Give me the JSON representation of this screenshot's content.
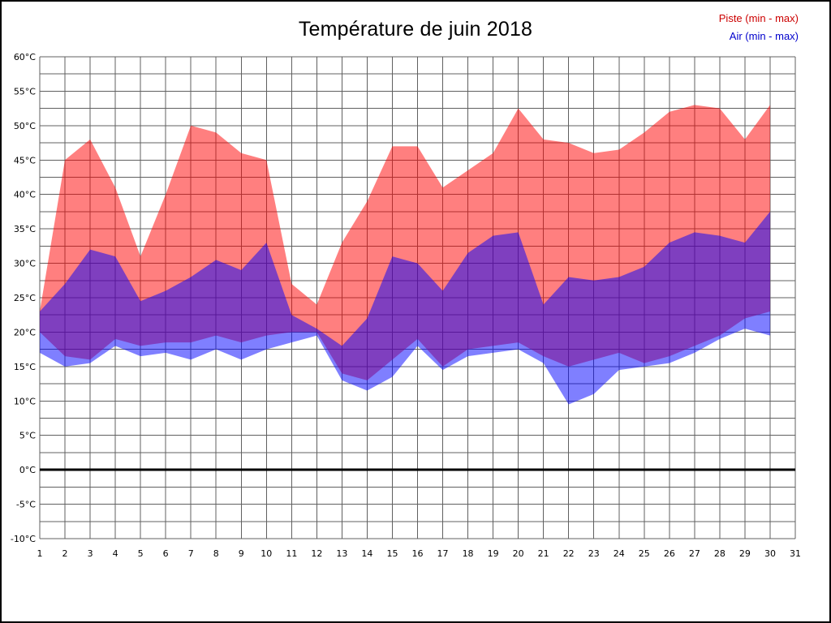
{
  "page": {
    "background": "#ffffff",
    "border_color": "#000000"
  },
  "chart_data": {
    "type": "area",
    "title": "Température de juin 2018",
    "unit": "°C",
    "ylim": [
      -10,
      60
    ],
    "ytick_step": 5,
    "grid_minor_step": 2.5,
    "grid_color": "#606060",
    "zero_line": 0,
    "zero_line_color": "#000000",
    "legend_position": "top-right",
    "x_ticks": [
      1,
      2,
      3,
      4,
      5,
      6,
      7,
      8,
      9,
      10,
      11,
      12,
      13,
      14,
      15,
      16,
      17,
      18,
      19,
      20,
      21,
      22,
      23,
      24,
      25,
      26,
      27,
      28,
      29,
      30,
      31
    ],
    "x": [
      1,
      2,
      3,
      4,
      5,
      6,
      7,
      8,
      9,
      10,
      11,
      12,
      13,
      14,
      15,
      16,
      17,
      18,
      19,
      20,
      21,
      22,
      23,
      24,
      25,
      26,
      27,
      28,
      29,
      30
    ],
    "series": [
      {
        "name": "Piste (min - max)",
        "legend_color": "#cc0000",
        "fill": "rgba(255,0,0,0.5)",
        "max": [
          23,
          45,
          48,
          41,
          31,
          40,
          50,
          49,
          46,
          45,
          27,
          24,
          33,
          39,
          47,
          47,
          41,
          43.5,
          46,
          52.5,
          48,
          47.5,
          46,
          46.5,
          49,
          52,
          53,
          52.5,
          48,
          53
        ],
        "min": [
          20,
          16.5,
          16,
          19,
          18,
          18.5,
          18.5,
          19.5,
          18.5,
          19.5,
          20,
          20,
          14,
          13,
          16,
          19,
          15,
          17.5,
          18,
          18.5,
          16.5,
          15,
          16,
          17,
          15.5,
          16.5,
          18,
          19.5,
          22,
          23
        ]
      },
      {
        "name": "Air (min - max)",
        "legend_color": "#0000cc",
        "fill": "rgba(0,0,255,0.5)",
        "max": [
          23,
          27,
          32,
          31,
          24.5,
          26,
          28,
          30.5,
          29,
          33,
          22.5,
          20.5,
          18,
          22,
          31,
          30,
          26,
          31.5,
          34,
          34.5,
          24,
          28,
          27.5,
          28,
          29.5,
          33,
          34.5,
          34,
          33,
          37.5
        ],
        "min": [
          17,
          15,
          15.5,
          18,
          16.5,
          17,
          16,
          17.5,
          16,
          17.5,
          18.5,
          19.5,
          13,
          11.5,
          13.5,
          18,
          14.5,
          16.5,
          17,
          17.5,
          15.5,
          9.5,
          11,
          14.5,
          15,
          15.5,
          17,
          19,
          20.5,
          19.5
        ]
      }
    ]
  }
}
